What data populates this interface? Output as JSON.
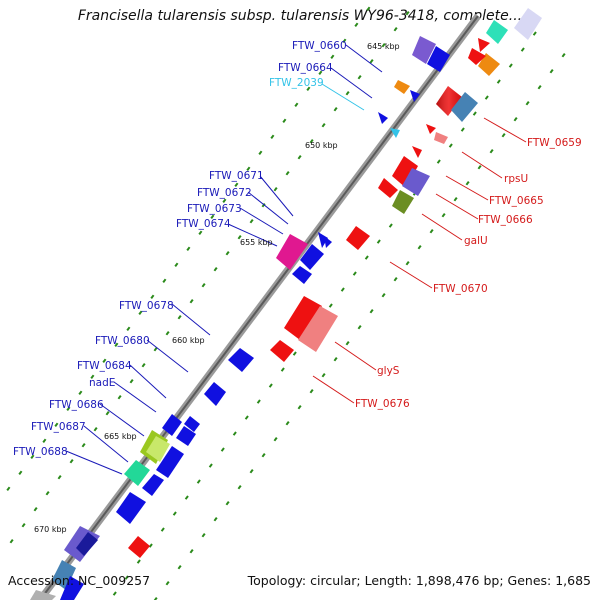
{
  "title": "Francisella tularensis subsp. tularensis WY96-3418, complete...",
  "accession": "Accession: NC_009257",
  "summary": "Topology: circular; Length: 1,898,476 bp; Genes: 1,685",
  "kbp_labels": [
    "645 kbp",
    "650 kbp",
    "655 kbp",
    "660 kbp",
    "665 kbp",
    "670 kbp"
  ],
  "left_labels": [
    {
      "text": "FTW_0660",
      "color": "#1a1ab8"
    },
    {
      "text": "FTW_0664",
      "color": "#1a1ab8"
    },
    {
      "text": "FTW_2039",
      "color": "#33c3e8"
    },
    {
      "text": "FTW_0671",
      "color": "#1a1ab8"
    },
    {
      "text": "FTW_0672",
      "color": "#1a1ab8"
    },
    {
      "text": "FTW_0673",
      "color": "#1a1ab8"
    },
    {
      "text": "FTW_0674",
      "color": "#1a1ab8"
    },
    {
      "text": "FTW_0678",
      "color": "#1a1ab8"
    },
    {
      "text": "FTW_0680",
      "color": "#1a1ab8"
    },
    {
      "text": "FTW_0684",
      "color": "#1a1ab8"
    },
    {
      "text": "nadE",
      "color": "#1a1ab8"
    },
    {
      "text": "FTW_0686",
      "color": "#1a1ab8"
    },
    {
      "text": "FTW_0687",
      "color": "#1a1ab8"
    },
    {
      "text": "FTW_0688",
      "color": "#1a1ab8"
    }
  ],
  "right_labels": [
    {
      "text": "FTW_0659",
      "color": "#d41a1a"
    },
    {
      "text": "rpsU",
      "color": "#d41a1a"
    },
    {
      "text": "FTW_0665",
      "color": "#d41a1a"
    },
    {
      "text": "FTW_0666",
      "color": "#d41a1a"
    },
    {
      "text": "galU",
      "color": "#d41a1a"
    },
    {
      "text": "FTW_0670",
      "color": "#d41a1a"
    },
    {
      "text": "glyS",
      "color": "#d41a1a"
    },
    {
      "text": "FTW_0676",
      "color": "#d41a1a"
    }
  ],
  "colors": {
    "backbone": "#8a8a8a",
    "reverse_gene": "#1010e0",
    "forward_gene": "#ee1111",
    "tick": "#2a8a1a"
  }
}
